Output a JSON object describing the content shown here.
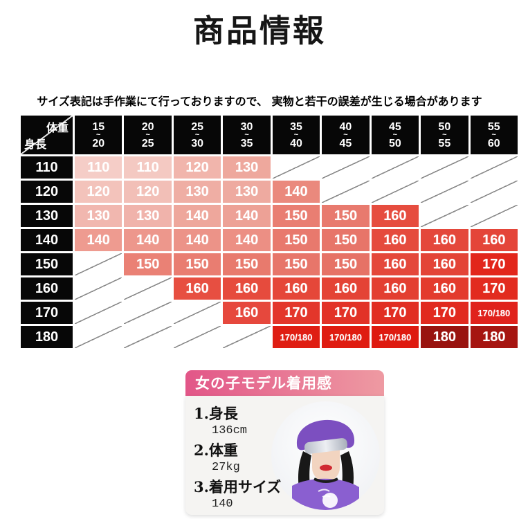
{
  "page": {
    "title": "商品情報",
    "note": "サイズ表記は手作業にて行っておりますので、 実物と若干の誤差が生じる場合があります"
  },
  "size_chart": {
    "corner": {
      "top": "体重",
      "bottom": "身長"
    },
    "weight_columns": [
      {
        "min": "15",
        "tilde": "~",
        "max": "20"
      },
      {
        "min": "20",
        "tilde": "~",
        "max": "25"
      },
      {
        "min": "25",
        "tilde": "~",
        "max": "30"
      },
      {
        "min": "30",
        "tilde": "~",
        "max": "35"
      },
      {
        "min": "35",
        "tilde": "~",
        "max": "40"
      },
      {
        "min": "40",
        "tilde": "~",
        "max": "45"
      },
      {
        "min": "45",
        "tilde": "~",
        "max": "50"
      },
      {
        "min": "50",
        "tilde": "~",
        "max": "55"
      },
      {
        "min": "55",
        "tilde": "~",
        "max": "60"
      }
    ],
    "rows": [
      {
        "height": "110",
        "cells": [
          {
            "size": "110",
            "color": "#f5cdc7"
          },
          {
            "size": "110",
            "color": "#f4c9c2"
          },
          {
            "size": "120",
            "color": "#f1b5ac"
          },
          {
            "size": "130",
            "color": "#eea89d"
          },
          null,
          null,
          null,
          null,
          null
        ]
      },
      {
        "height": "120",
        "cells": [
          {
            "size": "120",
            "color": "#f3c3bb"
          },
          {
            "size": "120",
            "color": "#f2bfb7"
          },
          {
            "size": "130",
            "color": "#efaea4"
          },
          {
            "size": "130",
            "color": "#eeaaa0"
          },
          {
            "size": "140",
            "color": "#ea897d"
          },
          null,
          null,
          null,
          null
        ]
      },
      {
        "height": "130",
        "cells": [
          {
            "size": "130",
            "color": "#f1b7af"
          },
          {
            "size": "130",
            "color": "#f0b3ab"
          },
          {
            "size": "140",
            "color": "#eea79c"
          },
          {
            "size": "140",
            "color": "#eda196"
          },
          {
            "size": "150",
            "color": "#e97e72"
          },
          {
            "size": "150",
            "color": "#e87a6e"
          },
          {
            "size": "160",
            "color": "#e64d3f"
          },
          null,
          null
        ]
      },
      {
        "height": "140",
        "cells": [
          {
            "size": "140",
            "color": "#ee9b90"
          },
          {
            "size": "140",
            "color": "#ed978c"
          },
          {
            "size": "140",
            "color": "#ec9388"
          },
          {
            "size": "140",
            "color": "#ec8f84"
          },
          {
            "size": "150",
            "color": "#e8796d"
          },
          {
            "size": "150",
            "color": "#e77569"
          },
          {
            "size": "160",
            "color": "#e54b3d"
          },
          {
            "size": "160",
            "color": "#e4483b"
          },
          {
            "size": "160",
            "color": "#e44539"
          }
        ]
      },
      {
        "height": "150",
        "cells": [
          null,
          {
            "size": "150",
            "color": "#ea8175"
          },
          {
            "size": "150",
            "color": "#e97d71"
          },
          {
            "size": "150",
            "color": "#e87a6d"
          },
          {
            "size": "150",
            "color": "#e7766a"
          },
          {
            "size": "150",
            "color": "#e67266"
          },
          {
            "size": "160",
            "color": "#e4483b"
          },
          {
            "size": "160",
            "color": "#e34437"
          },
          {
            "size": "170",
            "color": "#e2261b"
          }
        ]
      },
      {
        "height": "160",
        "cells": [
          null,
          null,
          {
            "size": "160",
            "color": "#e74f41"
          },
          {
            "size": "160",
            "color": "#e64b3d"
          },
          {
            "size": "160",
            "color": "#e54739"
          },
          {
            "size": "160",
            "color": "#e44335"
          },
          {
            "size": "160",
            "color": "#e33f31"
          },
          {
            "size": "160",
            "color": "#e33b2d"
          },
          {
            "size": "170",
            "color": "#e22b1f"
          }
        ]
      },
      {
        "height": "170",
        "cells": [
          null,
          null,
          null,
          {
            "size": "160",
            "color": "#e6483d"
          },
          {
            "size": "170",
            "color": "#e3362b"
          },
          {
            "size": "170",
            "color": "#e23227"
          },
          {
            "size": "170",
            "color": "#e12e23"
          },
          {
            "size": "170",
            "color": "#e12a1f"
          },
          {
            "size": "170/180",
            "color": "#e0221c"
          }
        ]
      },
      {
        "height": "180",
        "cells": [
          null,
          null,
          null,
          null,
          {
            "size": "170/180",
            "color": "#df1e13"
          },
          {
            "size": "170/180",
            "color": "#df1c11"
          },
          {
            "size": "170/180",
            "color": "#de1a10"
          },
          {
            "size": "180",
            "color": "#99130f"
          },
          {
            "size": "180",
            "color": "#a61511"
          }
        ]
      }
    ]
  },
  "model_card": {
    "title": "女の子モデル着用感",
    "specs": [
      {
        "label": "1.身長",
        "value": "136cm"
      },
      {
        "label": "2.体重",
        "value": "27kg"
      },
      {
        "label": "3.着用サイズ",
        "value": "140"
      }
    ]
  },
  "colors": {
    "header_black": "#070707",
    "diagonal_line": "#8a8a8a",
    "card_gradient_left": "#e25688",
    "card_gradient_right": "#ee9aa2",
    "card_body_bg": "#f5f4f2",
    "dark_red_max": "#99130f"
  }
}
